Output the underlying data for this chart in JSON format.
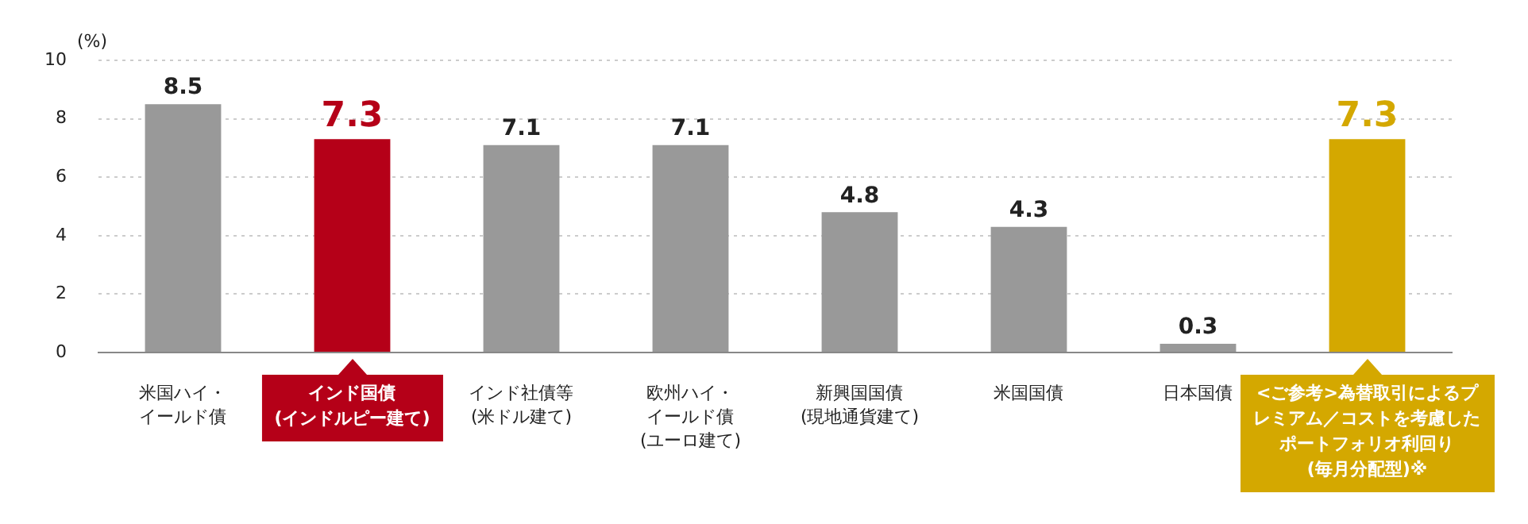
{
  "chart_data": {
    "type": "bar",
    "ylabel": "(%)",
    "categories": [
      "米国ハイ・イールド債",
      "インド国債(インドルピー建て)",
      "インド社債等(米ドル建て)",
      "欧州ハイ・イールド債(ユーロ建て)",
      "新興国国債(現地通貨建て)",
      "米国国債",
      "日本国債",
      "<ご参考>為替取引によるプレミアム／コストを考慮したポートフォリオ利回り(毎月分配型)※"
    ],
    "values": [
      8.5,
      7.3,
      7.1,
      7.1,
      4.8,
      4.3,
      0.3,
      7.3
    ],
    "colors": [
      "#999999",
      "#b50018",
      "#999999",
      "#999999",
      "#999999",
      "#999999",
      "#999999",
      "#d4a800"
    ],
    "ylim": [
      0,
      10
    ],
    "yticks": [
      0,
      2,
      4,
      6,
      8,
      10
    ],
    "grid": "y",
    "data_labels": true,
    "legend": false
  }
}
